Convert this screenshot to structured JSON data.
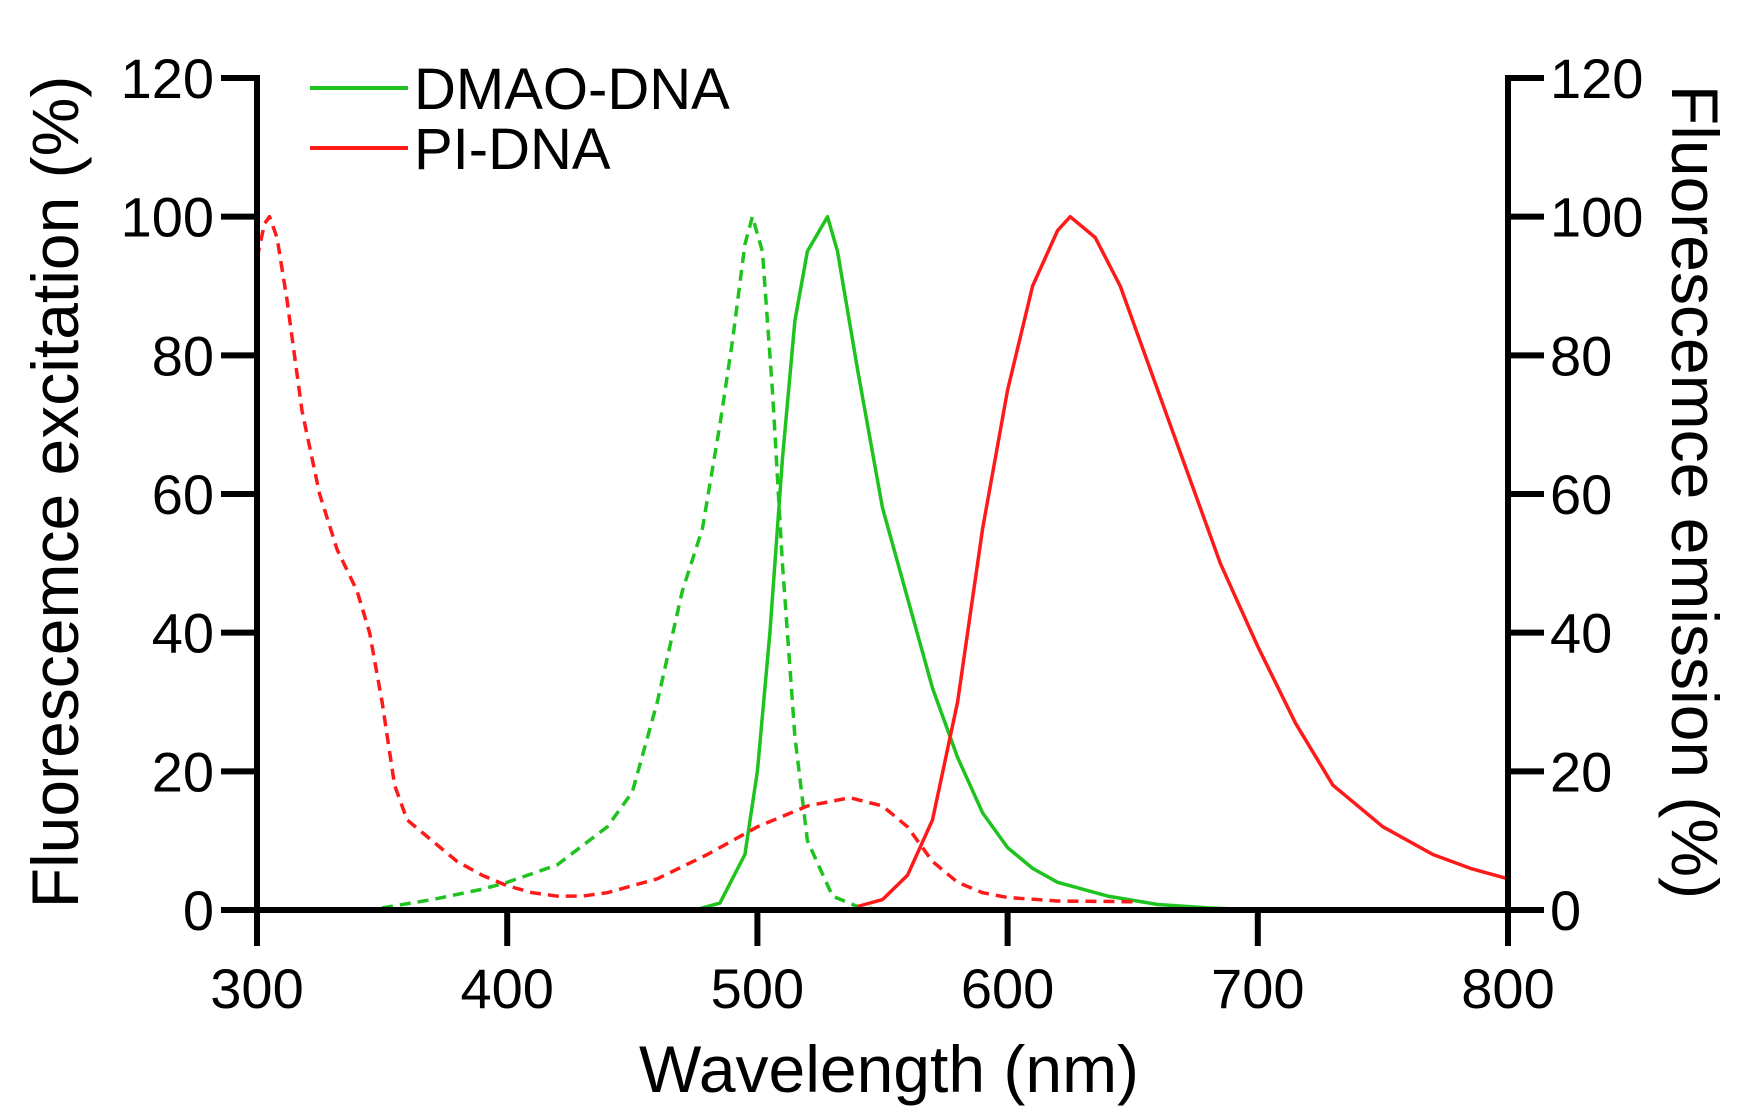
{
  "chart_data": {
    "type": "line",
    "xlabel": "Wavelength (nm)",
    "ylabel_left": "Fluorescemce excitation (%)",
    "ylabel_right": "Fluorescemce emission (%)",
    "xlim": [
      300,
      800
    ],
    "ylim": [
      0,
      120
    ],
    "xticks": [
      "300",
      "400",
      "500",
      "600",
      "700",
      "800"
    ],
    "yticks": [
      "0",
      "20",
      "40",
      "60",
      "80",
      "100",
      "120"
    ],
    "grid": false,
    "legend_placement": "top-left",
    "legend": [
      {
        "label": "DMAO-DNA",
        "color": "#1ec31e"
      },
      {
        "label": "PI-DNA",
        "color": "#ff1a1a"
      }
    ],
    "series": [
      {
        "legend": "DMAO-DNA",
        "axis": "left",
        "style": "dashed",
        "color": "#1ec31e",
        "x": [
          350,
          370,
          390,
          400,
          420,
          440,
          450,
          460,
          470,
          478,
          485,
          490,
          495,
          498,
          502,
          506,
          510,
          515,
          520,
          530,
          540,
          550
        ],
        "y": [
          0.3,
          1.5,
          3,
          4,
          6.5,
          12,
          17,
          30,
          46,
          55,
          70,
          82,
          96,
          100,
          95,
          75,
          50,
          25,
          10,
          2,
          0.5,
          0
        ]
      },
      {
        "legend": "DMAO-DNA",
        "axis": "right",
        "style": "solid",
        "color": "#1ec31e",
        "x": [
          475,
          485,
          495,
          500,
          505,
          510,
          515,
          520,
          528,
          532,
          540,
          550,
          560,
          570,
          580,
          590,
          600,
          610,
          620,
          640,
          660,
          680,
          700
        ],
        "y": [
          0,
          1,
          8,
          20,
          40,
          65,
          85,
          95,
          100,
          95,
          78,
          58,
          45,
          32,
          22,
          14,
          9,
          6,
          4,
          2,
          0.8,
          0.3,
          0
        ]
      },
      {
        "legend": "PI-DNA",
        "axis": "left",
        "style": "dashed",
        "color": "#ff1a1a",
        "x": [
          300,
          303,
          305,
          308,
          312,
          318,
          325,
          332,
          340,
          345,
          350,
          355,
          360,
          370,
          380,
          390,
          400,
          410,
          420,
          430,
          440,
          460,
          480,
          500,
          520,
          537,
          550,
          560,
          570,
          580,
          590,
          600,
          620,
          650
        ],
        "y": [
          94,
          99,
          100,
          97,
          88,
          72,
          60,
          52,
          46,
          40,
          30,
          18,
          13,
          10,
          7,
          5,
          3.5,
          2.5,
          2,
          2,
          2.5,
          4.5,
          8,
          12,
          15,
          16.2,
          15,
          12,
          7,
          4,
          2.5,
          1.8,
          1.3,
          1.2
        ]
      },
      {
        "legend": "PI-DNA",
        "axis": "right",
        "style": "solid",
        "color": "#ff1a1a",
        "x": [
          540,
          550,
          560,
          570,
          580,
          590,
          600,
          610,
          620,
          625,
          635,
          645,
          655,
          665,
          675,
          685,
          700,
          715,
          730,
          750,
          770,
          785,
          800
        ],
        "y": [
          0.5,
          1.5,
          5,
          13,
          30,
          55,
          75,
          90,
          98,
          100,
          97,
          90,
          80,
          70,
          60,
          50,
          38,
          27,
          18,
          12,
          8,
          6,
          4.5
        ]
      }
    ]
  }
}
